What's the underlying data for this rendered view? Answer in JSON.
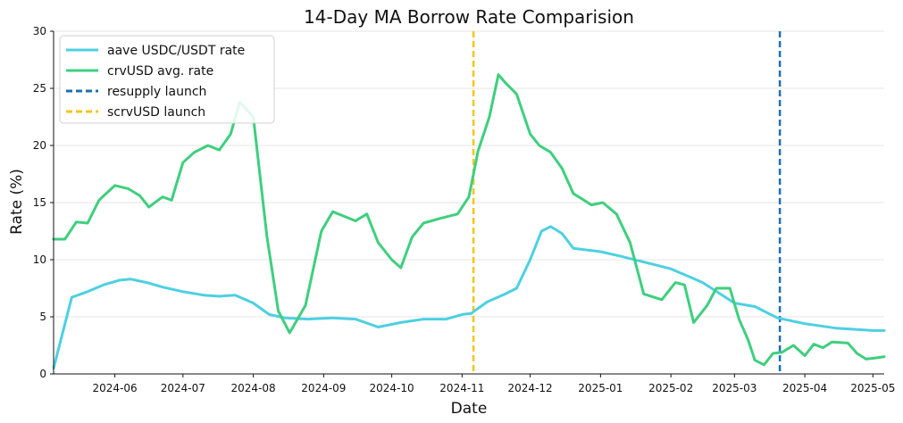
{
  "chart_data": {
    "type": "line",
    "title": "14-Day MA Borrow Rate Comparision",
    "xlabel": "Date",
    "ylabel": "Rate (%)",
    "xlim": [
      "2024-05-05",
      "2025-05-06"
    ],
    "ylim": [
      0,
      30
    ],
    "yticks": [
      0,
      5,
      10,
      15,
      20,
      25,
      30
    ],
    "xticks": [
      "2024-06",
      "2024-07",
      "2024-08",
      "2024-09",
      "2024-10",
      "2024-11",
      "2024-12",
      "2025-01",
      "2025-02",
      "2025-03",
      "2025-04",
      "2025-05"
    ],
    "grid": "horizontal",
    "legend_position": "top-left",
    "series": [
      {
        "name": "aave USDC/USDT rate",
        "color": "#4dd0e1",
        "x": [
          "2024-05-05",
          "2024-05-13",
          "2024-05-20",
          "2024-05-27",
          "2024-06-03",
          "2024-06-08",
          "2024-06-15",
          "2024-06-22",
          "2024-07-01",
          "2024-07-10",
          "2024-07-17",
          "2024-07-24",
          "2024-08-01",
          "2024-08-08",
          "2024-08-15",
          "2024-08-25",
          "2024-09-05",
          "2024-09-15",
          "2024-09-25",
          "2024-10-05",
          "2024-10-15",
          "2024-10-25",
          "2024-11-01",
          "2024-11-05",
          "2024-11-12",
          "2024-11-20",
          "2024-11-25",
          "2024-12-01",
          "2024-12-06",
          "2024-12-10",
          "2024-12-15",
          "2024-12-20",
          "2025-01-01",
          "2025-01-10",
          "2025-01-20",
          "2025-02-01",
          "2025-02-15",
          "2025-03-01",
          "2025-03-10",
          "2025-03-20",
          "2025-04-01",
          "2025-04-15",
          "2025-05-01",
          "2025-05-06"
        ],
        "values": [
          0.5,
          6.7,
          7.2,
          7.8,
          8.2,
          8.3,
          8.0,
          7.6,
          7.2,
          6.9,
          6.8,
          6.9,
          6.2,
          5.2,
          4.9,
          4.8,
          4.9,
          4.8,
          4.1,
          4.5,
          4.8,
          4.8,
          5.2,
          5.3,
          6.3,
          7.0,
          7.5,
          10.0,
          12.5,
          12.9,
          12.3,
          11.0,
          10.7,
          10.3,
          9.8,
          9.2,
          8.0,
          6.2,
          5.9,
          4.9,
          4.4,
          4.0,
          3.8,
          3.8
        ]
      },
      {
        "name": "crvUSD avg. rate",
        "color": "#3ecf7e",
        "x": [
          "2024-05-05",
          "2024-05-10",
          "2024-05-15",
          "2024-05-20",
          "2024-05-25",
          "2024-06-01",
          "2024-06-07",
          "2024-06-12",
          "2024-06-16",
          "2024-06-22",
          "2024-06-26",
          "2024-07-01",
          "2024-07-06",
          "2024-07-12",
          "2024-07-17",
          "2024-07-22",
          "2024-07-26",
          "2024-08-01",
          "2024-08-07",
          "2024-08-12",
          "2024-08-17",
          "2024-08-24",
          "2024-08-31",
          "2024-09-05",
          "2024-09-15",
          "2024-09-20",
          "2024-09-25",
          "2024-10-01",
          "2024-10-05",
          "2024-10-10",
          "2024-10-15",
          "2024-10-22",
          "2024-10-30",
          "2024-11-04",
          "2024-11-08",
          "2024-11-13",
          "2024-11-17",
          "2024-11-20",
          "2024-11-25",
          "2024-12-01",
          "2024-12-05",
          "2024-12-10",
          "2024-12-15",
          "2024-12-20",
          "2024-12-28",
          "2025-01-02",
          "2025-01-08",
          "2025-01-14",
          "2025-01-20",
          "2025-01-28",
          "2025-02-03",
          "2025-02-07",
          "2025-02-11",
          "2025-02-17",
          "2025-02-21",
          "2025-02-27",
          "2025-03-03",
          "2025-03-07",
          "2025-03-10",
          "2025-03-14",
          "2025-03-18",
          "2025-03-22",
          "2025-03-27",
          "2025-04-01",
          "2025-04-05",
          "2025-04-09",
          "2025-04-13",
          "2025-04-20",
          "2025-04-24",
          "2025-04-28",
          "2025-05-02",
          "2025-05-06"
        ],
        "values": [
          11.8,
          11.8,
          13.3,
          13.2,
          15.2,
          16.5,
          16.2,
          15.6,
          14.6,
          15.5,
          15.2,
          18.5,
          19.4,
          20.0,
          19.6,
          21.0,
          23.8,
          22.5,
          12.0,
          5.5,
          3.6,
          6.0,
          12.5,
          14.2,
          13.4,
          14.0,
          11.5,
          10.0,
          9.3,
          12.0,
          13.2,
          13.6,
          14.0,
          15.5,
          19.5,
          22.5,
          26.2,
          25.5,
          24.5,
          21.0,
          20.0,
          19.4,
          18.0,
          15.8,
          14.8,
          15.0,
          14.0,
          11.5,
          7.0,
          6.5,
          8.0,
          7.8,
          4.5,
          6.0,
          7.5,
          7.5,
          4.8,
          3.0,
          1.2,
          0.8,
          1.8,
          1.9,
          2.5,
          1.6,
          2.6,
          2.3,
          2.8,
          2.7,
          1.8,
          1.3,
          1.4,
          1.5
        ]
      }
    ],
    "vlines": [
      {
        "name": "resupply launch",
        "x": "2025-03-21",
        "color": "#1f6fb2"
      },
      {
        "name": "scrvUSD launch",
        "x": "2024-11-06",
        "color": "#f5c518"
      }
    ]
  }
}
